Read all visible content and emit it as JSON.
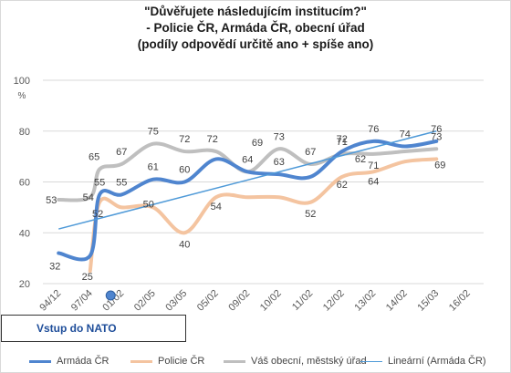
{
  "chart_data": {
    "type": "line",
    "title": [
      "\"Důvěřujete následujícím institucím?\"",
      "- Policie ČR, Armáda ČR, obecní úřad",
      "(podíly odpovědí určitě ano + spíše ano)"
    ],
    "ylabel": "%",
    "ylim": [
      20,
      100
    ],
    "yticks": [
      20,
      40,
      60,
      80,
      100
    ],
    "categories": [
      "94/12",
      "97/04",
      "01/02",
      "02/05",
      "03/05",
      "05/02",
      "09/02",
      "10/02",
      "11/02",
      "12/02",
      "13/02",
      "14/02",
      "15/03",
      "16/02"
    ],
    "x_positions": [
      0,
      1,
      1.3,
      2,
      3,
      4,
      5,
      6,
      7,
      8,
      9,
      10,
      11,
      12
    ],
    "grid": true,
    "legend_position": "bottom",
    "series": [
      {
        "name": "Armáda ČR",
        "color": "#4f85cf",
        "values": [
          32,
          31,
          55,
          55,
          61,
          60,
          69,
          64,
          63,
          62,
          72,
          76,
          74,
          76
        ],
        "labels": [
          32,
          null,
          55,
          55,
          61,
          60,
          null,
          64,
          63,
          null,
          72,
          76,
          74,
          76
        ]
      },
      {
        "name": "Policie ČR",
        "color": "#f4c4a0",
        "values": [
          null,
          25,
          52,
          50,
          50,
          40,
          54,
          54,
          54,
          52,
          62,
          64,
          68,
          69
        ],
        "labels": [
          null,
          25,
          52,
          null,
          50,
          40,
          54,
          null,
          null,
          52,
          62,
          64,
          null,
          69
        ]
      },
      {
        "name": "Váš obecní, městský úřad",
        "color": "#bfbfbf",
        "values": [
          53,
          54,
          65,
          67,
          75,
          72,
          72,
          64,
          73,
          67,
          71,
          71,
          72,
          73
        ],
        "labels": [
          53,
          54,
          65,
          67,
          75,
          72,
          72,
          null,
          73,
          67,
          71,
          71,
          null,
          73
        ]
      },
      {
        "name": "Lineární (Armáda ČR)",
        "color": "#4f9ad8",
        "values": [
          41.5,
          null,
          null,
          null,
          null,
          null,
          null,
          null,
          null,
          null,
          null,
          null,
          null,
          80
        ],
        "trend": true
      }
    ],
    "extra_labels": [
      {
        "series": 0,
        "index": 6,
        "text": "69"
      },
      {
        "series": 0,
        "index": 9,
        "text": "62"
      }
    ],
    "annotation": "Vstup do NATO",
    "marker_category": "01/02"
  }
}
